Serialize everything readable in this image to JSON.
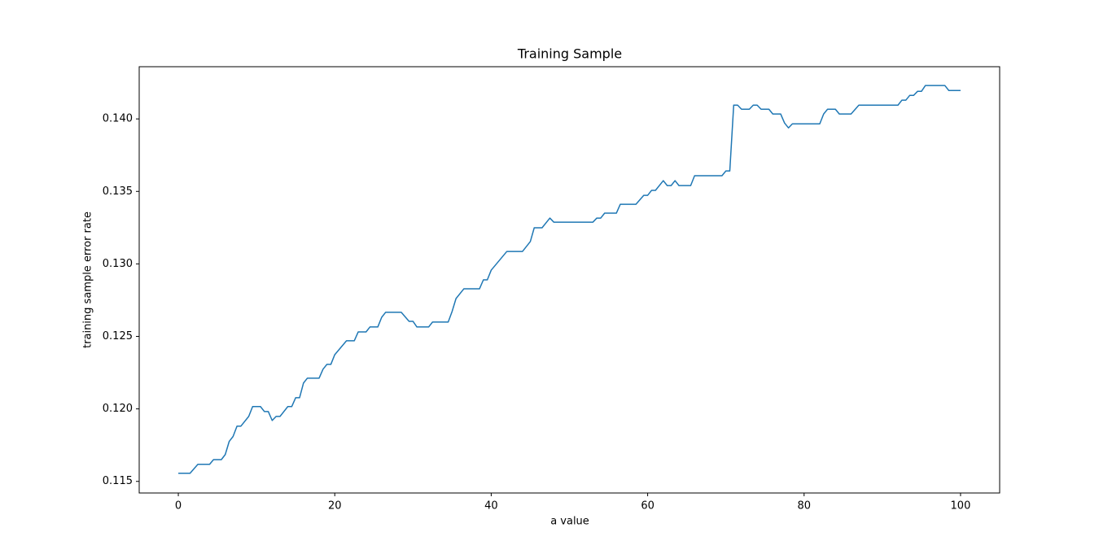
{
  "chart_data": {
    "type": "line",
    "title": "Training Sample",
    "xlabel": "a value",
    "ylabel": "training sample error rate",
    "color": "#1f77b4",
    "x": [
      0,
      1.5,
      2.5,
      4,
      4.5,
      5.5,
      6,
      6.5,
      7,
      7.5,
      8,
      9,
      9.5,
      10.5,
      11,
      11.5,
      12,
      12.5,
      13,
      14,
      14.5,
      15,
      15.5,
      16,
      16.5,
      18,
      18.5,
      19,
      19.5,
      20,
      21.5,
      22.5,
      23,
      24,
      24.5,
      25.5,
      26,
      26.5,
      28.5,
      29.5,
      30,
      30.5,
      32,
      32.5,
      34.5,
      35,
      35.5,
      36.5,
      38.5,
      39,
      39.5,
      40,
      42,
      44,
      45,
      45.5,
      46.5,
      47.5,
      48,
      53,
      53.5,
      54,
      54.5,
      56,
      56.5,
      58.5,
      59.5,
      60,
      60.5,
      61,
      62,
      62.5,
      63,
      63.5,
      64,
      65.5,
      66,
      69.5,
      70,
      70.5,
      71,
      71.5,
      72,
      73,
      73.5,
      74,
      74.5,
      75.5,
      76,
      77,
      77.5,
      78,
      78.5,
      82,
      82.5,
      83,
      84,
      84.5,
      86,
      87,
      92,
      92.5,
      93,
      93.5,
      94,
      94.5,
      95,
      95.5,
      98,
      98.5,
      100
    ],
    "values": [
      0.11556,
      0.11556,
      0.11618,
      0.11618,
      0.1165,
      0.1165,
      0.11685,
      0.11775,
      0.1181,
      0.11881,
      0.11881,
      0.11948,
      0.12016,
      0.12016,
      0.11982,
      0.11982,
      0.1192,
      0.11948,
      0.11948,
      0.12016,
      0.12016,
      0.12077,
      0.12077,
      0.12178,
      0.12212,
      0.12212,
      0.12274,
      0.12307,
      0.12307,
      0.12374,
      0.1247,
      0.1247,
      0.12531,
      0.12531,
      0.12565,
      0.12565,
      0.12632,
      0.12666,
      0.12666,
      0.12604,
      0.12604,
      0.12565,
      0.12565,
      0.12599,
      0.12599,
      0.12672,
      0.12761,
      0.12828,
      0.12828,
      0.1289,
      0.1289,
      0.12957,
      0.13086,
      0.13086,
      0.13154,
      0.13249,
      0.13249,
      0.13316,
      0.13288,
      0.13288,
      0.13316,
      0.13316,
      0.1335,
      0.1335,
      0.13411,
      0.13411,
      0.13473,
      0.13473,
      0.13507,
      0.13507,
      0.13574,
      0.1354,
      0.1354,
      0.13574,
      0.1354,
      0.1354,
      0.13608,
      0.13608,
      0.13641,
      0.13641,
      0.14095,
      0.14095,
      0.14067,
      0.14067,
      0.14095,
      0.14095,
      0.14067,
      0.14067,
      0.14034,
      0.14034,
      0.13972,
      0.13938,
      0.13966,
      0.13966,
      0.14034,
      0.14067,
      0.14067,
      0.14034,
      0.14034,
      0.14095,
      0.14095,
      0.14129,
      0.14129,
      0.14162,
      0.14162,
      0.1419,
      0.1419,
      0.1423,
      0.1423,
      0.14196,
      0.14196
    ],
    "xlim": [
      -5,
      105
    ],
    "ylim": [
      0.1142,
      0.1436
    ],
    "xticks": [
      0,
      20,
      40,
      60,
      80,
      100
    ],
    "yticks": [
      {
        "value": 0.115,
        "label": "0.115"
      },
      {
        "value": 0.12,
        "label": "0.120"
      },
      {
        "value": 0.125,
        "label": "0.125"
      },
      {
        "value": 0.13,
        "label": "0.130"
      },
      {
        "value": 0.135,
        "label": "0.135"
      },
      {
        "value": 0.14,
        "label": "0.140"
      }
    ]
  }
}
